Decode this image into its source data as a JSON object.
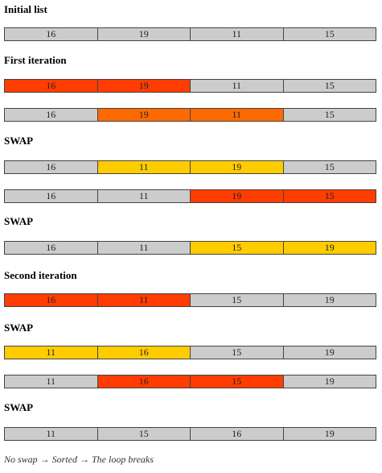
{
  "colors": {
    "grey": "#cccccc",
    "red": "#ff3d00",
    "orange": "#ff6a00",
    "yellow": "#ffcc00"
  },
  "steps": [
    {
      "label": "Initial list",
      "values": [
        "16",
        "19",
        "11",
        "15"
      ],
      "colors": [
        "grey",
        "grey",
        "grey",
        "grey"
      ]
    },
    {
      "label": "First iteration",
      "values": [
        "16",
        "19",
        "11",
        "15"
      ],
      "colors": [
        "red",
        "red",
        "grey",
        "grey"
      ]
    },
    {
      "label": "",
      "values": [
        "16",
        "19",
        "11",
        "15"
      ],
      "colors": [
        "grey",
        "orange",
        "orange",
        "grey"
      ]
    },
    {
      "label": "SWAP",
      "values": [
        "16",
        "11",
        "19",
        "15"
      ],
      "colors": [
        "grey",
        "yellow",
        "yellow",
        "grey"
      ]
    },
    {
      "label": "",
      "values": [
        "16",
        "11",
        "19",
        "15"
      ],
      "colors": [
        "grey",
        "grey",
        "red",
        "red"
      ]
    },
    {
      "label": "SWAP",
      "values": [
        "16",
        "11",
        "15",
        "19"
      ],
      "colors": [
        "grey",
        "grey",
        "yellow",
        "yellow"
      ]
    },
    {
      "label": "Second iteration",
      "values": [
        "16",
        "11",
        "15",
        "19"
      ],
      "colors": [
        "red",
        "red",
        "grey",
        "grey"
      ]
    },
    {
      "label": "SWAP",
      "values": [
        "11",
        "16",
        "15",
        "19"
      ],
      "colors": [
        "yellow",
        "yellow",
        "grey",
        "grey"
      ]
    },
    {
      "label": "",
      "values": [
        "11",
        "16",
        "15",
        "19"
      ],
      "colors": [
        "grey",
        "red",
        "red",
        "grey"
      ]
    },
    {
      "label": "SWAP",
      "values": [
        "11",
        "15",
        "16",
        "19"
      ],
      "colors": [
        "grey",
        "grey",
        "grey",
        "grey"
      ]
    }
  ],
  "footer": "No swap → Sorted → The loop breaks"
}
